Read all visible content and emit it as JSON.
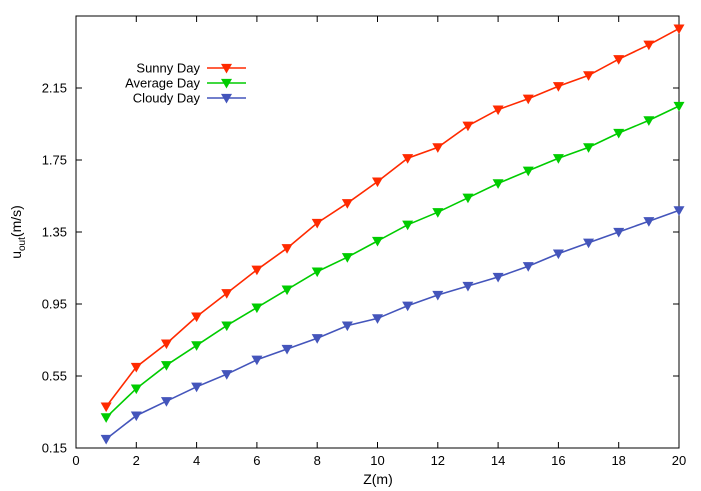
{
  "chart_data": {
    "type": "line",
    "title": "",
    "xlabel": "Z(m)",
    "ylabel": {
      "main": "u",
      "sub": "out",
      "unit": "(m/s)"
    },
    "xlim": [
      0,
      20
    ],
    "ylim": [
      0.15,
      2.55
    ],
    "xticks": [
      "0",
      "2",
      "4",
      "6",
      "8",
      "10",
      "12",
      "14",
      "16",
      "18",
      "20"
    ],
    "yticks": [
      "0.15",
      "0.55",
      "0.95",
      "1.35",
      "1.75",
      "2.15"
    ],
    "grid": false,
    "legend_position": "top-left",
    "marker": "triangle-down",
    "x": [
      1,
      2,
      3,
      4,
      5,
      6,
      7,
      8,
      9,
      10,
      11,
      12,
      13,
      14,
      15,
      16,
      17,
      18,
      19,
      20
    ],
    "series": [
      {
        "name": "Sunny Day",
        "color": "#ff2a00",
        "values": [
          0.38,
          0.6,
          0.73,
          0.88,
          1.01,
          1.14,
          1.26,
          1.4,
          1.51,
          1.63,
          1.76,
          1.82,
          1.94,
          2.03,
          2.09,
          2.16,
          2.22,
          2.31,
          2.39,
          2.48
        ]
      },
      {
        "name": "Average Day",
        "color": "#00cc00",
        "values": [
          0.32,
          0.48,
          0.61,
          0.72,
          0.83,
          0.93,
          1.03,
          1.13,
          1.21,
          1.3,
          1.39,
          1.46,
          1.54,
          1.62,
          1.69,
          1.76,
          1.82,
          1.9,
          1.97,
          2.05
        ]
      },
      {
        "name": "Cloudy Day",
        "color": "#4455bb",
        "values": [
          0.2,
          0.33,
          0.41,
          0.49,
          0.56,
          0.64,
          0.7,
          0.76,
          0.83,
          0.87,
          0.94,
          1.0,
          1.05,
          1.1,
          1.16,
          1.23,
          1.29,
          1.35,
          1.41,
          1.47
        ]
      }
    ]
  }
}
